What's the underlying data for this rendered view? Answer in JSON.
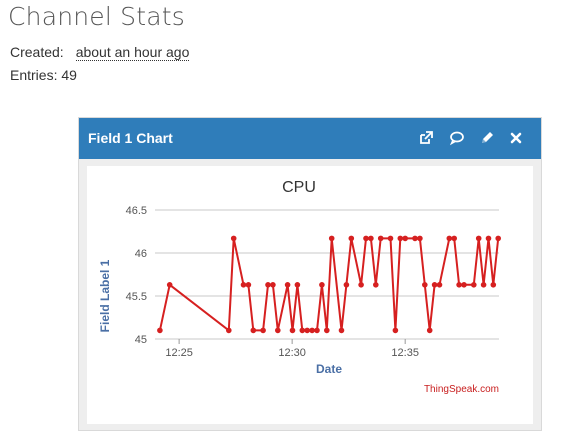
{
  "page": {
    "title": "Channel Stats"
  },
  "meta": {
    "created_label": "Created:",
    "created_value": "about an hour ago",
    "entries_label": "Entries:",
    "entries_value": "49"
  },
  "widget": {
    "title": "Field 1 Chart",
    "icons": [
      "external-link-icon",
      "comment-icon",
      "pencil-icon",
      "close-icon"
    ]
  },
  "chart_data": {
    "type": "line",
    "title": "CPU",
    "xlabel": "Date",
    "ylabel": "Field Label 1",
    "credit": "ThingSpeak.com",
    "line_color": "#d62020",
    "ylim": [
      45,
      46.5
    ],
    "yticks": [
      45,
      45.5,
      46,
      46.5
    ],
    "ytick_labels": [
      "45",
      "45.5",
      "46",
      "46.5"
    ],
    "xlim": [
      "12:23:56",
      "12:39:09"
    ],
    "xticks": [
      "12:25",
      "12:30",
      "12:35"
    ],
    "grid": true,
    "legend": false,
    "x": [
      "12:24:09",
      "12:24:35",
      "12:27:12",
      "12:27:25",
      "12:27:51",
      "12:28:04",
      "12:28:17",
      "12:28:43",
      "12:28:56",
      "12:29:09",
      "12:29:22",
      "12:29:48",
      "12:30:01",
      "12:30:14",
      "12:30:27",
      "12:30:40",
      "12:30:53",
      "12:31:06",
      "12:31:19",
      "12:31:32",
      "12:31:45",
      "12:32:11",
      "12:32:24",
      "12:32:37",
      "12:33:03",
      "12:33:16",
      "12:33:29",
      "12:33:42",
      "12:33:55",
      "12:34:21",
      "12:34:34",
      "12:34:47",
      "12:35:00",
      "12:35:26",
      "12:35:39",
      "12:35:52",
      "12:36:05",
      "12:36:18",
      "12:36:31",
      "12:36:57",
      "12:37:10",
      "12:37:23",
      "12:37:36",
      "12:38:02",
      "12:38:15",
      "12:38:28",
      "12:38:41",
      "12:38:54",
      "12:39:07"
    ],
    "y": [
      45.1,
      45.63,
      45.1,
      46.17,
      45.63,
      45.63,
      45.1,
      45.1,
      45.63,
      45.63,
      45.1,
      45.63,
      45.1,
      45.63,
      45.1,
      45.1,
      45.1,
      45.1,
      45.63,
      45.1,
      46.17,
      45.1,
      45.63,
      46.17,
      45.63,
      46.17,
      46.17,
      45.63,
      46.17,
      46.17,
      45.1,
      46.17,
      46.17,
      46.17,
      46.17,
      45.63,
      45.1,
      45.63,
      45.63,
      46.17,
      46.17,
      45.63,
      45.63,
      45.63,
      46.17,
      45.63,
      46.17,
      45.63,
      46.17
    ]
  }
}
